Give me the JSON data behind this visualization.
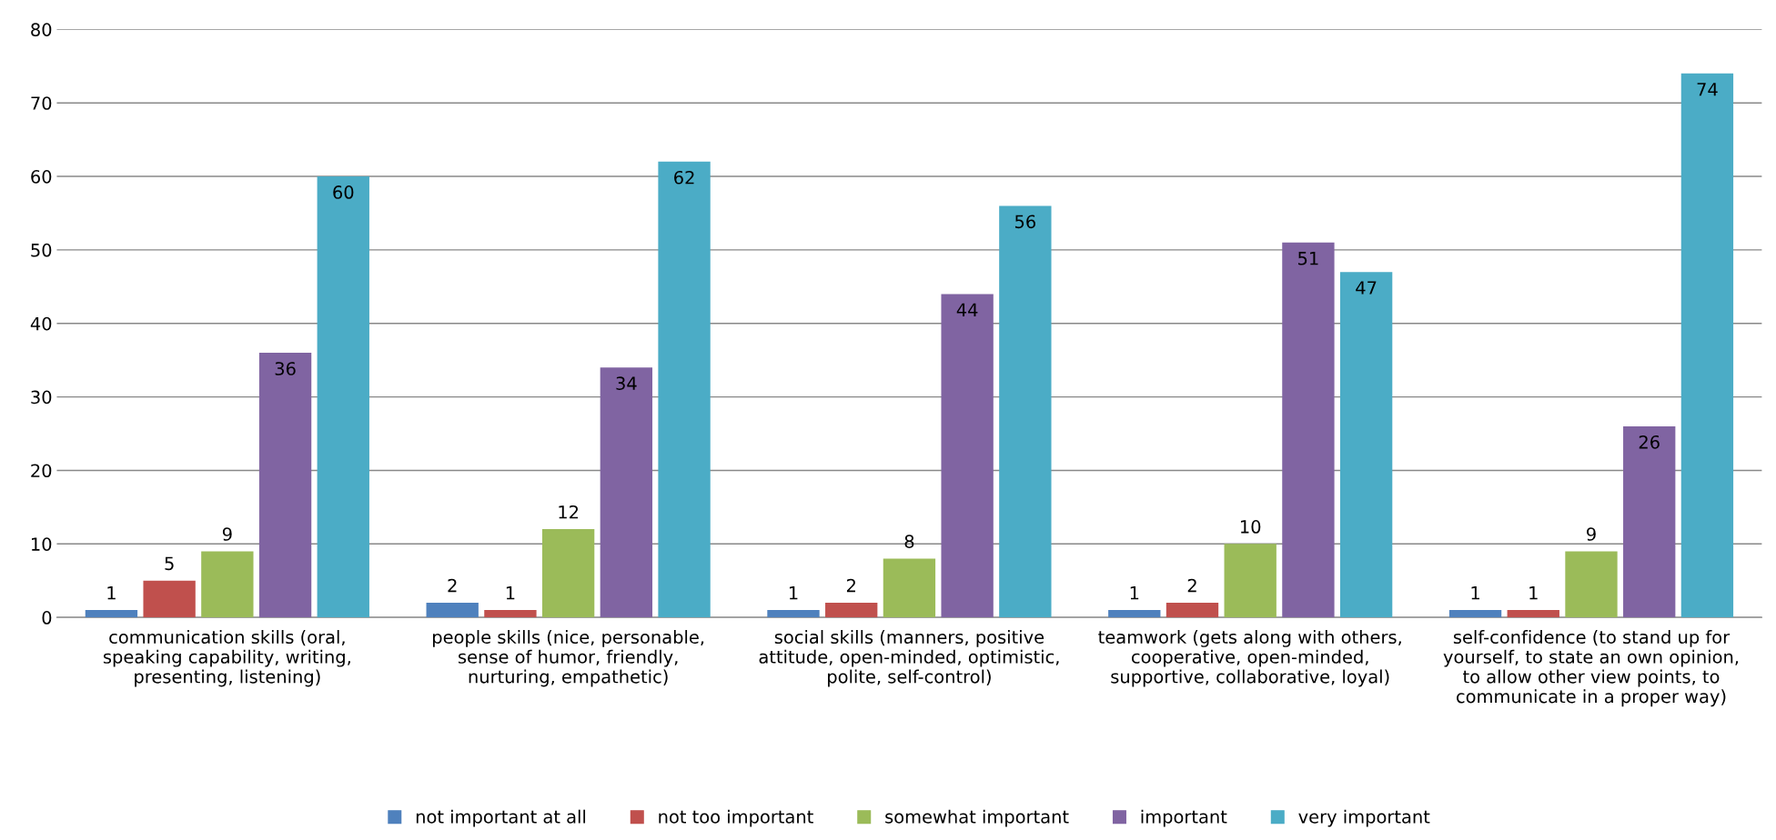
{
  "chart_data": {
    "type": "bar",
    "categories": [
      "communication skills (oral,\nspeaking capability, writing,\npresenting, listening)",
      "people skills (nice, personable,\nsense of humor, friendly,\nnurturing, empathetic)",
      "social skills (manners, positive\nattitude, open-minded, optimistic,\npolite, self-control)",
      "teamwork (gets along with others,\ncooperative, open-minded,\nsupportive, collaborative, loyal)",
      "self-confidence (to stand up for\nyourself, to state an own opinion,\nto allow other view points, to\ncommunicate in a proper way)"
    ],
    "series": [
      {
        "name": "not important at all",
        "color": "#4f81bd",
        "values": [
          1,
          2,
          1,
          1,
          1
        ]
      },
      {
        "name": "not too important",
        "color": "#c0504d",
        "values": [
          5,
          1,
          2,
          2,
          1
        ]
      },
      {
        "name": "somewhat important",
        "color": "#9bbb59",
        "values": [
          9,
          12,
          8,
          10,
          9
        ]
      },
      {
        "name": "important",
        "color": "#8064a2",
        "values": [
          36,
          34,
          44,
          51,
          26
        ]
      },
      {
        "name": "very important",
        "color": "#4bacc6",
        "values": [
          60,
          62,
          56,
          47,
          74
        ]
      }
    ],
    "ylim": [
      0,
      80
    ],
    "yticks": [
      0,
      10,
      20,
      30,
      40,
      50,
      60,
      70,
      80
    ],
    "grid": "y",
    "legend": "bottom",
    "data_labels": true
  }
}
